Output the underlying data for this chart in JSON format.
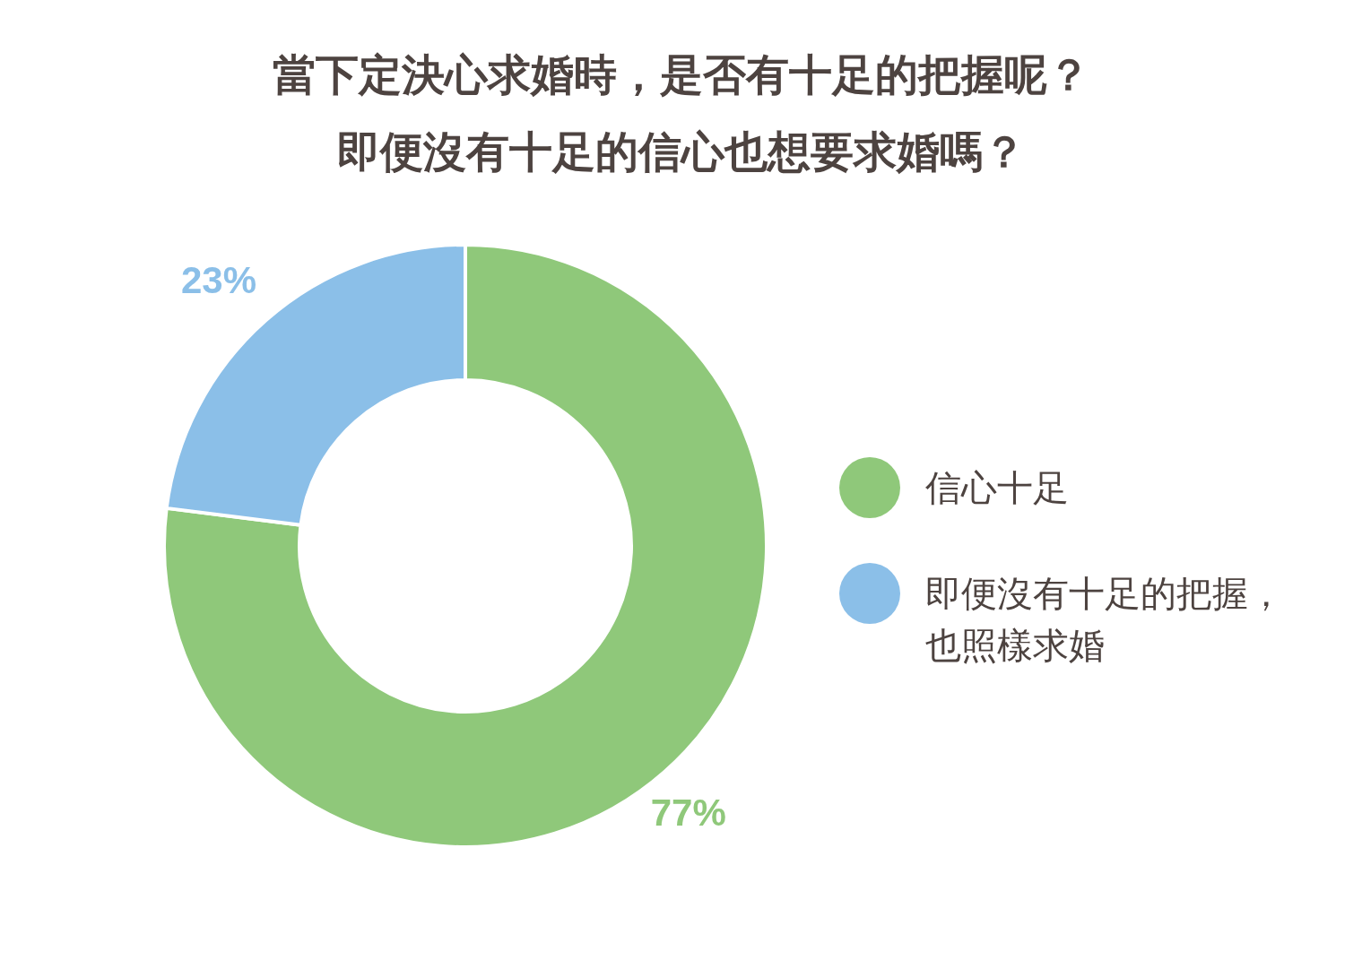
{
  "chart_data": {
    "type": "donut",
    "title": "當下定決心求婚時，是否有十足的把握呢？即便沒有十足的信心也想要求婚嗎？",
    "categories": [
      "信心十足",
      "即便沒有十足的把握，也照樣求婚"
    ],
    "values": [
      77,
      23
    ],
    "colors": [
      "#8fc87a",
      "#8bbfe8"
    ],
    "value_labels": [
      "77%",
      "23%"
    ],
    "legend": "right"
  }
}
